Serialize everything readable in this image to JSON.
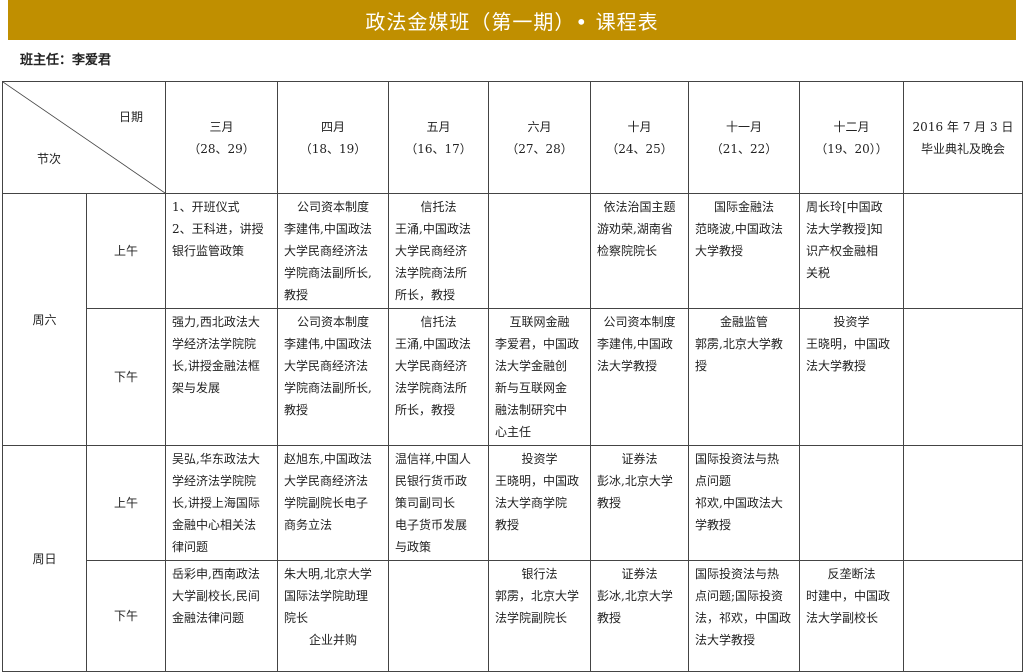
{
  "title": "政法金媒班（第一期）• 课程表",
  "head_teacher": "班主任：李爱君",
  "header": {
    "date_label": "日期",
    "session_label": "节次",
    "columns": [
      {
        "month": "三月",
        "days": "（28、29）"
      },
      {
        "month": "四月",
        "days": "（18、19）"
      },
      {
        "month": "五月",
        "days": "（16、17）"
      },
      {
        "month": "六月",
        "days": "（27、28）"
      },
      {
        "month": "十月",
        "days": "（24、25）"
      },
      {
        "month": "十一月",
        "days": "（21、22）"
      },
      {
        "month": "十二月",
        "days": "（19、20））"
      },
      {
        "month": "2016 年 7 月 3 日",
        "days": "毕业典礼及晚会"
      }
    ]
  },
  "rows": [
    {
      "day": "周六",
      "period": "上午",
      "cells": [
        {
          "title": "",
          "lines": [
            "1、开班仪式",
            "2、王科进，讲授",
            "银行监管政策"
          ]
        },
        {
          "title": "公司资本制度",
          "lines": [
            "李建伟,中国政法",
            "大学民商经济法",
            "学院商法副所长,",
            "教授"
          ]
        },
        {
          "title": "信托法",
          "lines": [
            "王涌,中国政法",
            "大学民商经济",
            "法学院商法所",
            "所长，教授"
          ]
        },
        {
          "title": "",
          "lines": []
        },
        {
          "title": "依法治国主题",
          "lines": [
            "游劝荣,湖南省",
            "检察院院长"
          ]
        },
        {
          "title": "国际金融法",
          "lines": [
            "范晓波,中国政法",
            "大学教授"
          ]
        },
        {
          "title": "",
          "lines": [
            "周长玲[中国政",
            "法大学教授]知",
            "识产权金融相",
            "关税"
          ]
        },
        {
          "title": "",
          "lines": []
        }
      ]
    },
    {
      "day": "周六",
      "period": "下午",
      "cells": [
        {
          "title": "",
          "lines": [
            "强力,西北政法大",
            "学经济法学院院",
            "长,讲授金融法框",
            "架与发展"
          ]
        },
        {
          "title": "公司资本制度",
          "lines": [
            "李建伟,中国政法",
            "大学民商经济法",
            "学院商法副所长,",
            "教授"
          ]
        },
        {
          "title": "信托法",
          "lines": [
            "王涌,中国政法",
            "大学民商经济",
            "法学院商法所",
            "所长，教授"
          ]
        },
        {
          "title": "互联网金融",
          "lines": [
            "李爱君，中国政",
            "法大学金融创",
            "新与互联网金",
            "融法制研究中",
            "心主任"
          ]
        },
        {
          "title": "公司资本制度",
          "lines": [
            "李建伟,中国政",
            "法大学教授"
          ]
        },
        {
          "title": "金融监管",
          "lines": [
            "郭雳,北京大学教",
            "授"
          ]
        },
        {
          "title": "投资学",
          "lines": [
            "王晓明，中国政",
            "法大学教授"
          ]
        },
        {
          "title": "",
          "lines": []
        }
      ]
    },
    {
      "day": "周日",
      "period": "上午",
      "cells": [
        {
          "title": "",
          "lines": [
            "吴弘,华东政法大",
            "学经济法学院院",
            "长,讲授上海国际",
            "金融中心相关法",
            "律问题"
          ]
        },
        {
          "title": "",
          "lines": [
            "赵旭东,中国政法",
            "大学民商经济法",
            "学院副院长电子",
            "商务立法"
          ]
        },
        {
          "title": "",
          "lines": [
            "温信祥,中国人",
            "民银行货币政",
            "策司副司长",
            "电子货币发展",
            "与政策"
          ]
        },
        {
          "title": "投资学",
          "lines": [
            "王晓明，中国政",
            "法大学商学院",
            "教授"
          ]
        },
        {
          "title": "证券法",
          "lines": [
            "彭冰,北京大学",
            "教授"
          ]
        },
        {
          "title": "",
          "lines": [
            "国际投资法与热",
            "点问题",
            "祁欢,中国政法大",
            "学教授"
          ]
        },
        {
          "title": "",
          "lines": []
        },
        {
          "title": "",
          "lines": []
        }
      ]
    },
    {
      "day": "周日",
      "period": "下午",
      "cells": [
        {
          "title": "",
          "lines": [
            "岳彩申,西南政法",
            "大学副校长,民间",
            "金融法律问题"
          ]
        },
        {
          "title": "",
          "lines": [
            "朱大明,北京大学",
            "国际法学院助理",
            "院长"
          ],
          "footer": "企业并购"
        },
        {
          "title": "",
          "lines": []
        },
        {
          "title": "银行法",
          "lines": [
            "郭雳，北京大学",
            "法学院副院长"
          ]
        },
        {
          "title": "证券法",
          "lines": [
            "彭冰,北京大学",
            "教授"
          ]
        },
        {
          "title": "",
          "lines": [
            "国际投资法与热",
            "点问题;国际投资",
            "法，祁欢，中国政",
            "法大学教授"
          ]
        },
        {
          "title": "反垄断法",
          "lines": [
            "时建中，中国政",
            "法大学副校长"
          ]
        },
        {
          "title": "",
          "lines": []
        }
      ]
    }
  ],
  "colors": {
    "title_bar": "#c08f00"
  }
}
